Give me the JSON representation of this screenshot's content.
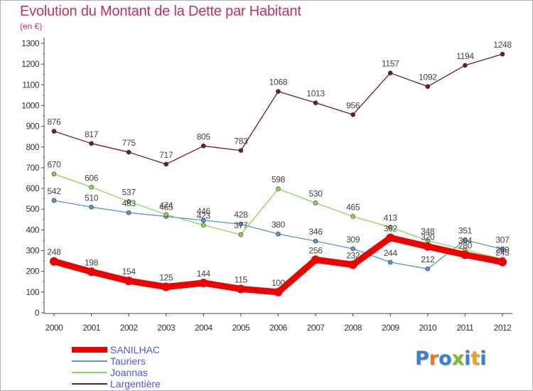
{
  "title": "Evolution du Montant de la Dette par Habitant",
  "subtitle": "(en €)",
  "logo": {
    "text": "Proxiti",
    "letter_colors": [
      "#3a7fd0",
      "#e87722",
      "#3a7fd0",
      "#7dbb2f",
      "#3a7fd0",
      "#e8a022",
      "#3a7fd0"
    ]
  },
  "chart_data": {
    "type": "line",
    "title": "Evolution du Montant de la Dette par Habitant",
    "subtitle": "(en €)",
    "x": [
      "2000",
      "2001",
      "2002",
      "2003",
      "2004",
      "2005",
      "2006",
      "2007",
      "2008",
      "2009",
      "2010",
      "2011",
      "2012"
    ],
    "ylim": [
      0,
      1300
    ],
    "yticks": [
      0,
      100,
      200,
      300,
      400,
      500,
      600,
      700,
      800,
      900,
      1000,
      1100,
      1200,
      1300
    ],
    "grid": false,
    "legend_position": "bottom-left",
    "series": [
      {
        "name": "SANILHAC",
        "color": "#ee0000",
        "emphasis": "bold",
        "values": [
          248,
          198,
          154,
          125,
          144,
          115,
          100,
          256,
          232,
          362,
          320,
          280,
          245
        ]
      },
      {
        "name": "Tauriers",
        "color": "#5b95d0",
        "values": [
          542,
          510,
          483,
          465,
          446,
          428,
          380,
          346,
          309,
          244,
          212,
          351,
          307
        ]
      },
      {
        "name": "Joannas",
        "color": "#88d855",
        "values": [
          670,
          606,
          537,
          474,
          423,
          377,
          598,
          530,
          465,
          413,
          348,
          304,
          259
        ]
      },
      {
        "name": "Largentière",
        "color": "#6e1e22",
        "values": [
          876,
          817,
          775,
          717,
          805,
          783,
          1068,
          1013,
          956,
          1157,
          1092,
          1194,
          1248
        ]
      }
    ]
  }
}
